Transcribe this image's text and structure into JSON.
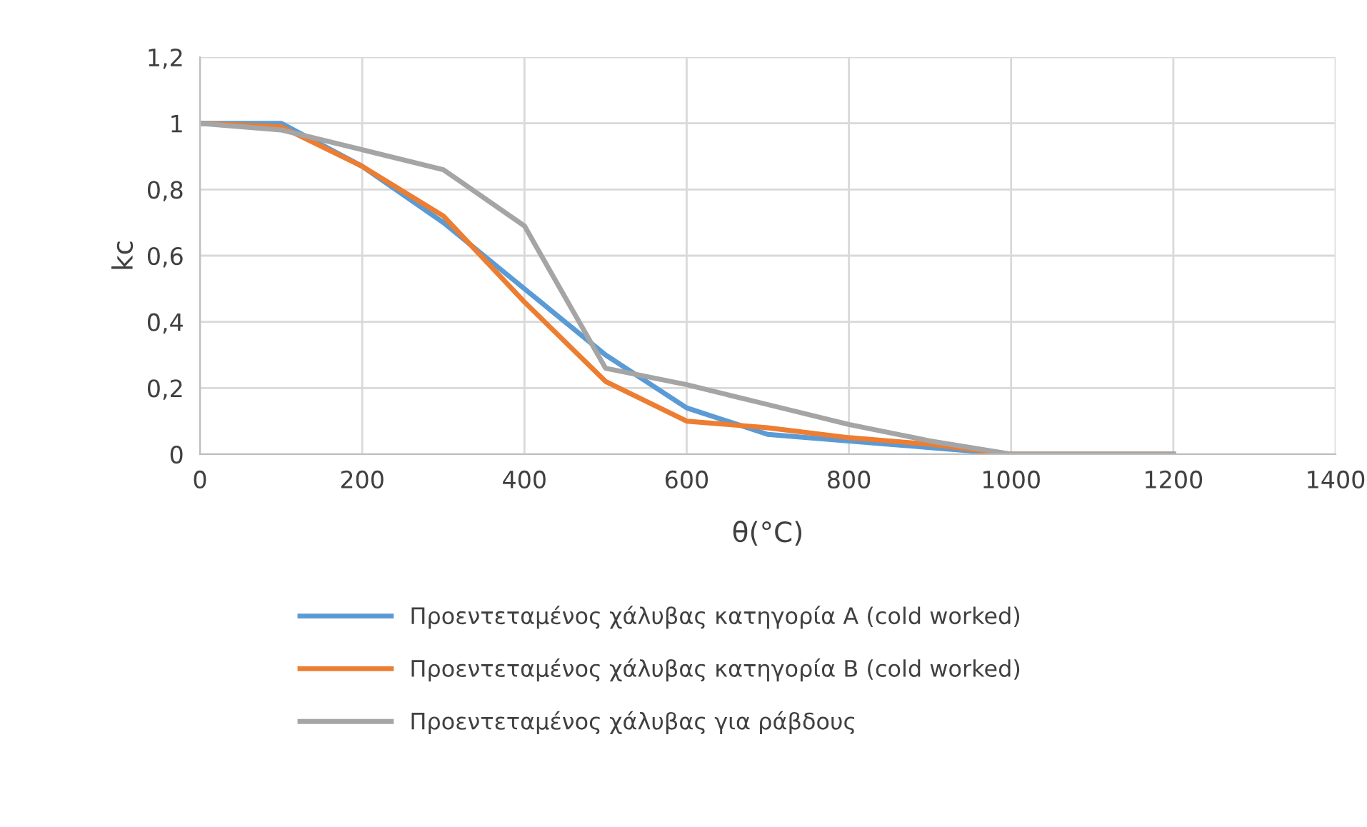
{
  "chart_data": {
    "type": "line",
    "xlabel": "θ(°C)",
    "ylabel": "kc",
    "x": [
      0,
      100,
      200,
      300,
      400,
      500,
      600,
      700,
      800,
      900,
      1000,
      1100,
      1200
    ],
    "series": [
      {
        "name": "Προεντεταμένος χάλυβας κατηγορία A (cold worked)",
        "color": "#5b9bd5",
        "values": [
          1,
          1,
          0.87,
          0.7,
          0.5,
          0.3,
          0.14,
          0.06,
          0.04,
          0.02,
          0,
          0,
          0
        ]
      },
      {
        "name": "Προεντεταμένος χάλυβας κατηγορία B (cold worked)",
        "color": "#ed7d31",
        "values": [
          1,
          0.99,
          0.87,
          0.72,
          0.46,
          0.22,
          0.1,
          0.08,
          0.05,
          0.03,
          0,
          0,
          0
        ]
      },
      {
        "name": "Προεντεταμένος χάλυβας για ράβδους",
        "color": "#a5a5a5",
        "values": [
          1,
          0.98,
          0.92,
          0.86,
          0.69,
          0.26,
          0.21,
          0.15,
          0.09,
          0.04,
          0,
          0,
          0
        ]
      }
    ],
    "xlim": [
      0,
      1400
    ],
    "xticks": [
      0,
      200,
      400,
      600,
      800,
      1000,
      1200,
      1400
    ],
    "ylim": [
      0,
      1.2
    ],
    "yticks": [
      {
        "value": 0,
        "label": "0"
      },
      {
        "value": 0.2,
        "label": "0,2"
      },
      {
        "value": 0.4,
        "label": "0,4"
      },
      {
        "value": 0.6,
        "label": "0,6"
      },
      {
        "value": 0.8,
        "label": "0,8"
      },
      {
        "value": 1,
        "label": "1"
      },
      {
        "value": 1.2,
        "label": "1,2"
      }
    ],
    "grid": true,
    "legend": "bottom",
    "marker": "none",
    "line_style": "solid"
  }
}
